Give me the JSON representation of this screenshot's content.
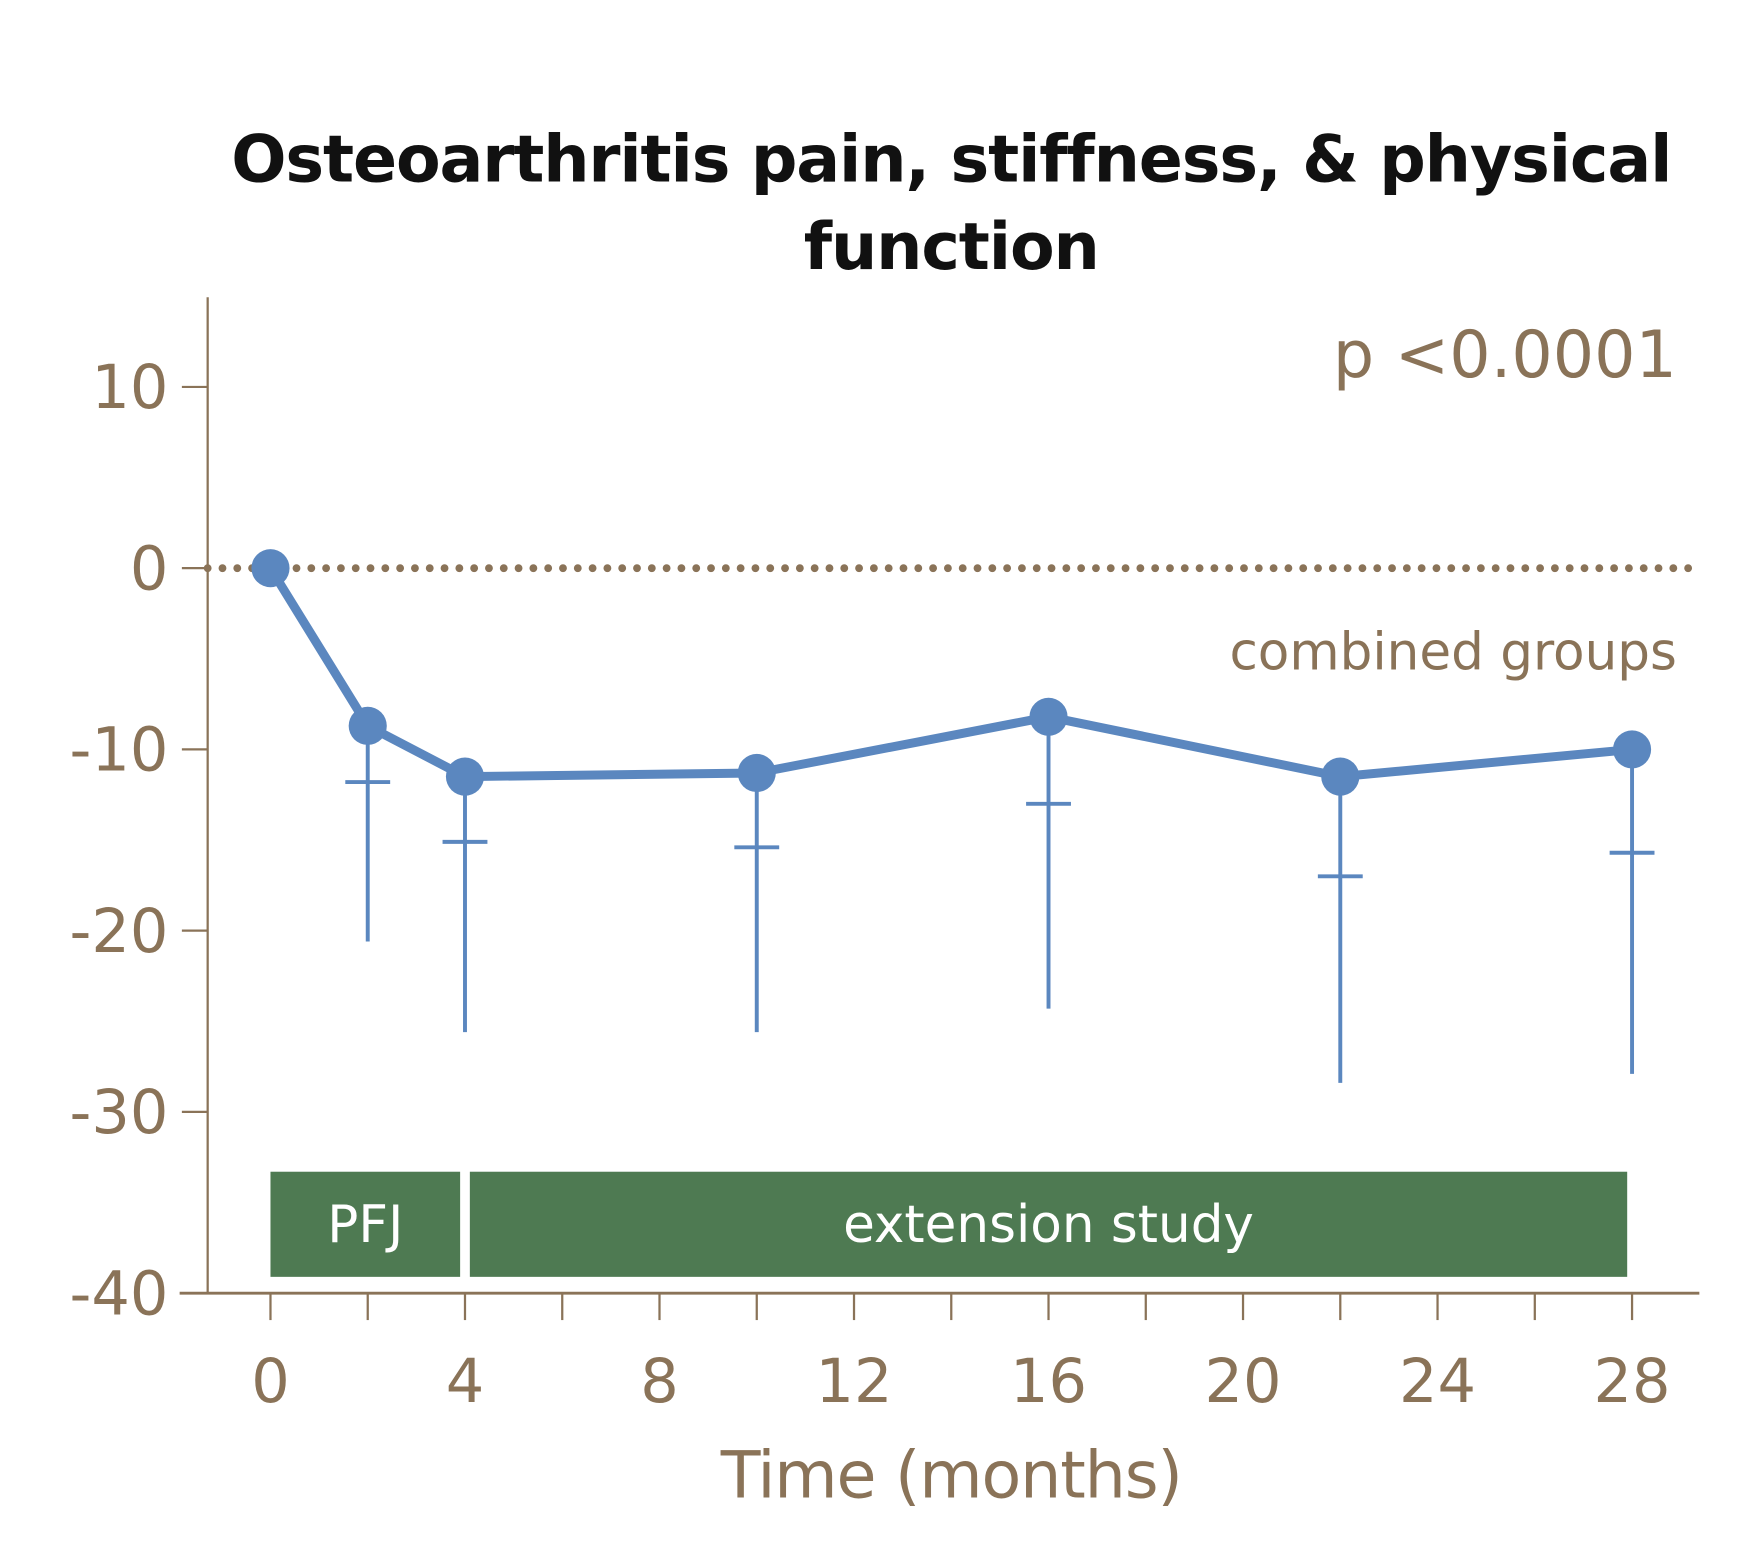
{
  "chart_data": {
    "type": "line",
    "title": "Osteoarthritis pain, stiffness, & physical function",
    "title_lines": [
      "Osteoarthritis pain, stiffness, & physical",
      "function"
    ],
    "xlabel": "Time (months)",
    "ylabel": "",
    "xlim": [
      0,
      28
    ],
    "ylim": [
      -40,
      10
    ],
    "x_ticks": [
      0,
      4,
      8,
      12,
      16,
      20,
      24,
      28
    ],
    "x_tick_labels": [
      "0",
      "4",
      "8",
      "12",
      "16",
      "20",
      "24",
      "28"
    ],
    "x_minor_step": 2,
    "y_ticks": [
      10,
      0,
      -10,
      -20,
      -30,
      -40
    ],
    "y_tick_labels": [
      "10",
      "0",
      "-10",
      "-20",
      "-30",
      "-40"
    ],
    "grid": false,
    "reference_line": {
      "y": 0,
      "style": "dotted"
    },
    "series": [
      {
        "name": "combined groups",
        "x": [
          0,
          2,
          4,
          10,
          16,
          22,
          28
        ],
        "y": [
          0,
          -8.7,
          -11.5,
          -11.3,
          -8.2,
          -11.5,
          -10.0
        ],
        "error_mark": [
          null,
          -11.8,
          -15.1,
          -15.4,
          -13.0,
          -17.0,
          -15.7
        ],
        "error_lower": [
          null,
          -20.6,
          -25.6,
          -25.6,
          -24.3,
          -28.4,
          -27.9
        ]
      }
    ],
    "annotations": {
      "p_value": "p <0.0001",
      "series_label": "combined groups"
    },
    "phases": [
      {
        "label": "PFJ",
        "x_start": 0,
        "x_end": 3.9
      },
      {
        "label": "extension study",
        "x_start": 4.1,
        "x_end": 27.9
      }
    ],
    "phase_y_range": [
      -39.1,
      -33.3
    ],
    "colors": {
      "series": "#5b87bf",
      "axis": "#8a7358",
      "phase_bar": "#4e7a52",
      "title": "#111111"
    }
  }
}
